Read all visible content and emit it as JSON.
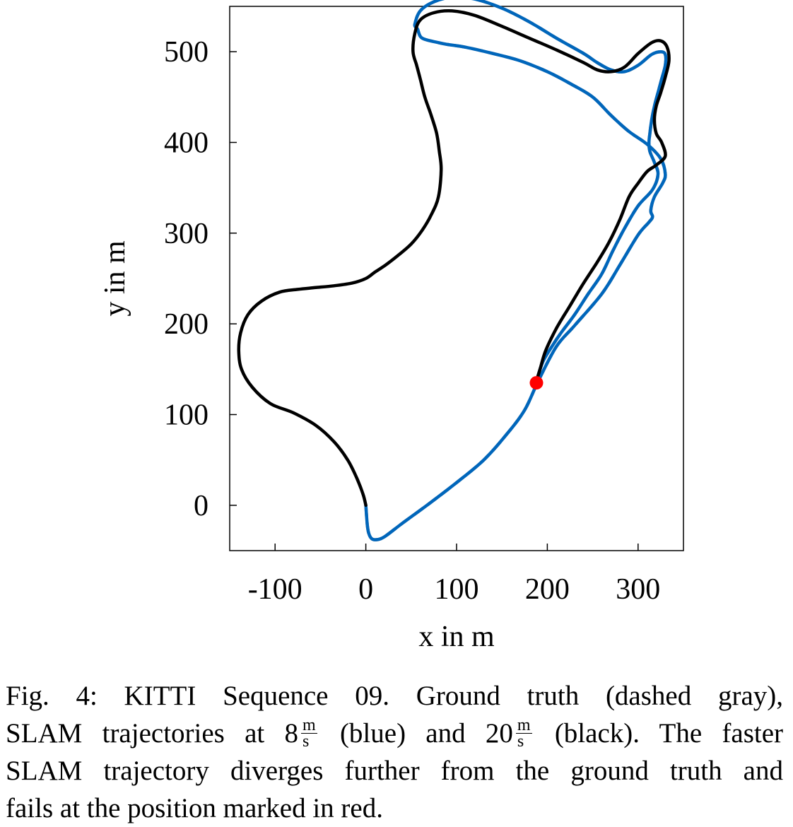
{
  "chart_data": {
    "type": "line",
    "xlabel": "x in m",
    "ylabel": "y in m",
    "xlim": [
      -150,
      350
    ],
    "ylim": [
      -50,
      550
    ],
    "xticks": [
      -100,
      0,
      100,
      200,
      300
    ],
    "xtick_labels": [
      "-100",
      "0",
      "100",
      "200",
      "300"
    ],
    "yticks": [
      0,
      100,
      200,
      300,
      400,
      500
    ],
    "ytick_labels": [
      "0",
      "100",
      "200",
      "300",
      "400",
      "500"
    ],
    "grid": false,
    "series": [
      {
        "name": "Ground truth (dashed gray)",
        "color": "#8c8c8c",
        "dashed": true,
        "x": [
          0,
          2,
          5,
          10,
          20,
          40,
          70,
          100,
          130,
          155,
          175,
          190,
          210,
          230,
          260,
          280,
          300,
          312,
          316,
          314,
          318,
          327,
          330,
          325,
          310,
          290,
          270,
          250,
          225,
          200,
          170,
          140,
          110,
          90,
          80,
          62,
          57,
          54,
          60,
          75,
          95,
          120,
          150,
          180,
          210,
          240,
          255,
          270,
          285,
          300,
          315,
          325,
          330,
          330,
          326,
          322,
          318,
          315,
          313,
          312,
          313,
          318,
          322,
          316,
          300,
          285,
          272,
          260,
          245,
          230,
          215,
          205,
          195,
          188
        ],
        "y": [
          0,
          -25,
          -35,
          -38,
          -35,
          -20,
          2,
          25,
          50,
          78,
          105,
          137,
          175,
          198,
          233,
          265,
          298,
          312,
          318,
          325,
          340,
          355,
          365,
          382,
          398,
          412,
          430,
          450,
          465,
          478,
          490,
          498,
          505,
          508,
          510,
          515,
          525,
          530,
          545,
          555,
          560,
          558,
          548,
          533,
          515,
          498,
          488,
          480,
          478,
          485,
          497,
          500,
          497,
          485,
          470,
          455,
          440,
          425,
          410,
          400,
          390,
          378,
          365,
          348,
          330,
          305,
          280,
          255,
          233,
          210,
          190,
          175,
          158,
          137
        ]
      },
      {
        "name": "SLAM 8 m/s (blue)",
        "color": "#0066bb",
        "dashed": false,
        "x": [
          0,
          2,
          5,
          10,
          20,
          40,
          70,
          100,
          130,
          155,
          175,
          190,
          210,
          230,
          260,
          280,
          300,
          312,
          316,
          314,
          318,
          327,
          330,
          325,
          310,
          290,
          270,
          250,
          225,
          200,
          170,
          140,
          110,
          90,
          80,
          62,
          57,
          54,
          60,
          75,
          95,
          120,
          150,
          180,
          210,
          240,
          255,
          270,
          285,
          300,
          315,
          325,
          330,
          330,
          326,
          322,
          318,
          315,
          313,
          312,
          313,
          318,
          322,
          316,
          300,
          285,
          272,
          260,
          245,
          230,
          215,
          205,
          195,
          188
        ],
        "y": [
          0,
          -25,
          -35,
          -38,
          -35,
          -20,
          2,
          25,
          50,
          78,
          105,
          137,
          175,
          198,
          233,
          265,
          298,
          312,
          318,
          325,
          340,
          355,
          365,
          382,
          398,
          412,
          430,
          450,
          465,
          478,
          490,
          498,
          505,
          508,
          510,
          515,
          525,
          530,
          545,
          555,
          560,
          558,
          548,
          533,
          515,
          498,
          488,
          480,
          478,
          485,
          497,
          500,
          497,
          485,
          470,
          455,
          440,
          425,
          410,
          400,
          390,
          378,
          365,
          348,
          330,
          305,
          280,
          255,
          233,
          210,
          190,
          175,
          158,
          137
        ]
      },
      {
        "name": "SLAM 20 m/s (black)",
        "color": "#000000",
        "dashed": false,
        "x": [
          0,
          -3,
          -10,
          -20,
          -35,
          -55,
          -80,
          -105,
          -125,
          -137,
          -140,
          -138,
          -130,
          -115,
          -95,
          -75,
          -55,
          -35,
          -15,
          0,
          10,
          22,
          35,
          50,
          62,
          72,
          80,
          83,
          81,
          78,
          72,
          65,
          60,
          56,
          52,
          54,
          60,
          75,
          95,
          120,
          150,
          180,
          210,
          240,
          255,
          270,
          285,
          300,
          315,
          325,
          332,
          334,
          330,
          325,
          320,
          318,
          320,
          326,
          330,
          320,
          310,
          300,
          290,
          280,
          268,
          255,
          240,
          225,
          210,
          198,
          192,
          188
        ],
        "y": [
          0,
          12,
          30,
          50,
          70,
          88,
          102,
          112,
          130,
          150,
          170,
          190,
          210,
          225,
          235,
          238,
          240,
          242,
          245,
          250,
          257,
          265,
          275,
          288,
          303,
          320,
          340,
          370,
          390,
          410,
          430,
          450,
          470,
          485,
          500,
          520,
          535,
          543,
          545,
          540,
          528,
          515,
          502,
          488,
          480,
          478,
          483,
          498,
          510,
          512,
          505,
          490,
          472,
          455,
          440,
          425,
          410,
          400,
          385,
          375,
          368,
          355,
          340,
          315,
          290,
          268,
          245,
          220,
          195,
          170,
          150,
          137
        ]
      }
    ],
    "failure_marker": {
      "label": "marked in red",
      "x": 188,
      "y": 135,
      "color": "#ff0000"
    }
  },
  "caption": {
    "line1": "Fig. 4: KITTI Sequence 09. Ground truth (dashed gray),",
    "line2_a": "SLAM trajectories at 8",
    "line2_unit1_num": "m",
    "line2_unit1_den": "s",
    "line2_b": "(blue) and 20",
    "line2_unit2_num": "m",
    "line2_unit2_den": "s",
    "line2_c": "(black). The faster",
    "line3": "SLAM trajectory diverges further from the ground truth and",
    "line4": "fails at the position marked in red."
  }
}
